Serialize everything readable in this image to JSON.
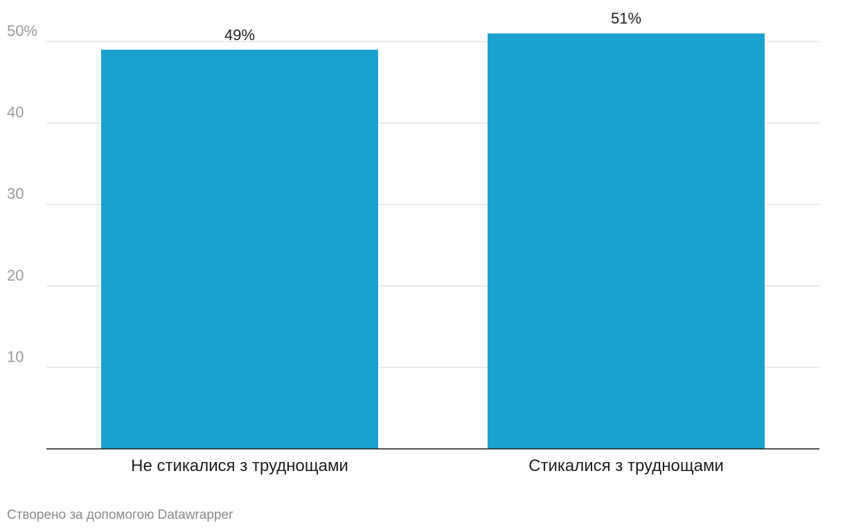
{
  "chart_data": {
    "type": "bar",
    "categories": [
      "Не стикалися з труднощами",
      "Стикалися з труднощами"
    ],
    "values": [
      49,
      51
    ],
    "value_labels": [
      "49%",
      "51%"
    ],
    "ylim": [
      0,
      50
    ],
    "yticks": [
      10,
      20,
      30,
      40,
      50
    ],
    "ytick_labels": [
      "10",
      "20",
      "30",
      "40",
      "50%"
    ],
    "grid": true,
    "bar_color": "#1aa1ce"
  },
  "footer": {
    "credit": "Створено за допомогою Datawrapper"
  }
}
